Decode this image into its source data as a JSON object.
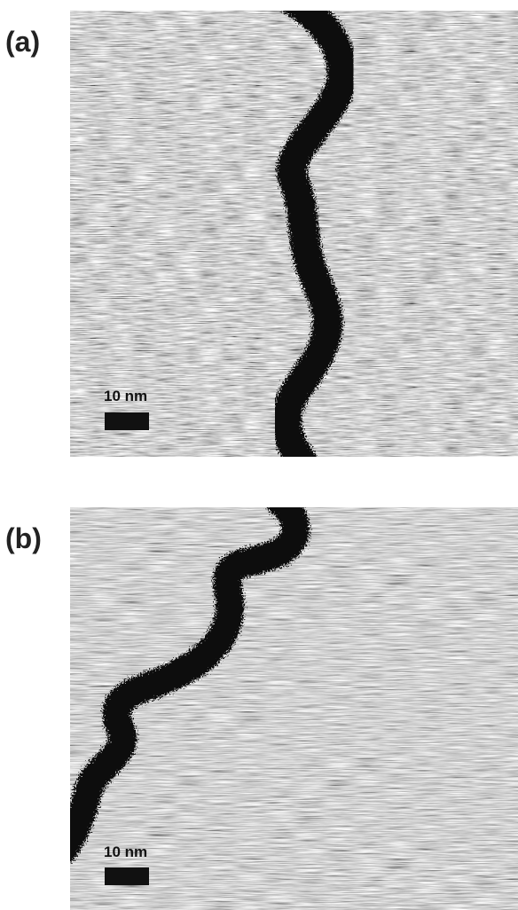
{
  "panels": [
    {
      "label": "(a)",
      "scale_bar": "10 nm"
    },
    {
      "label": "(b)",
      "scale_bar": "10 nm"
    }
  ]
}
